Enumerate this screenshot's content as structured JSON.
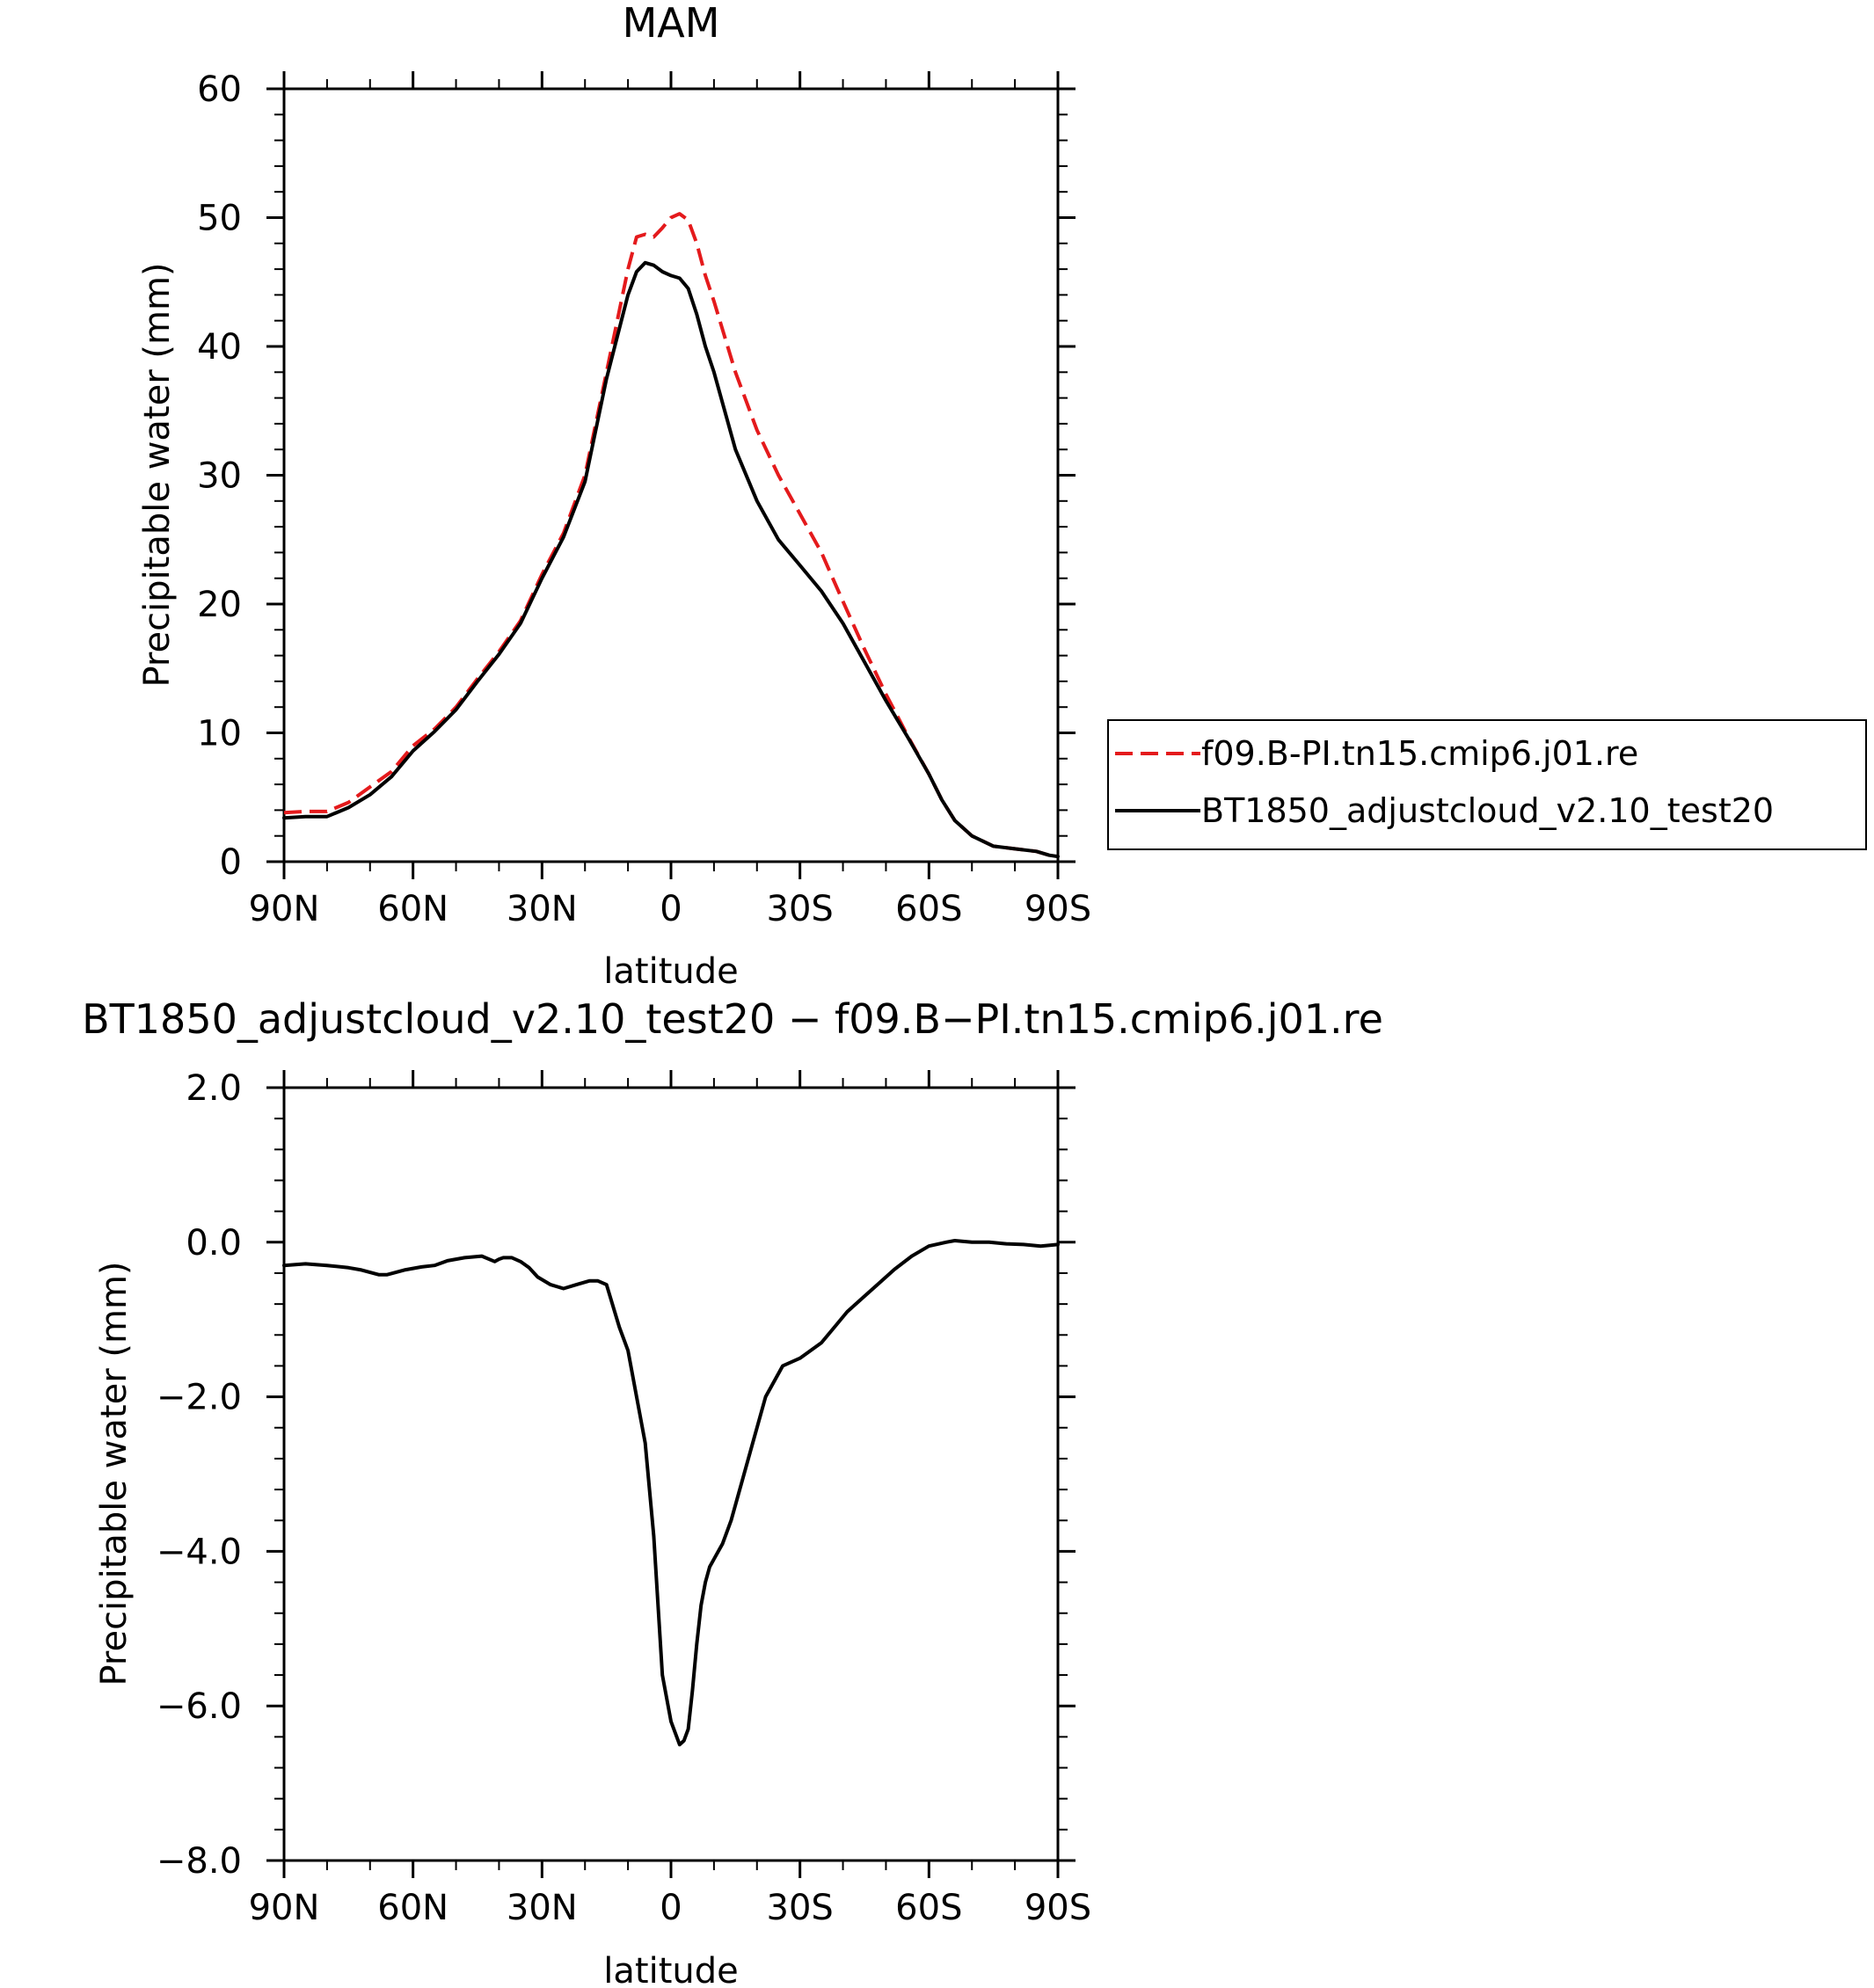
{
  "chart_data": [
    {
      "type": "line",
      "title": "MAM",
      "xlabel": "latitude",
      "ylabel": "Precipitable water (mm)",
      "xlim": [
        90,
        -90
      ],
      "ylim": [
        0,
        60
      ],
      "x_ticks": [
        90,
        60,
        30,
        0,
        -30,
        -60,
        -90
      ],
      "x_tick_labels": [
        "90N",
        "60N",
        "30N",
        "0",
        "30S",
        "60S",
        "90S"
      ],
      "y_ticks": [
        0,
        10,
        20,
        30,
        40,
        50,
        60
      ],
      "y_tick_labels": [
        "0",
        "10",
        "20",
        "30",
        "40",
        "50",
        "60"
      ],
      "grid": false,
      "legend_position": "right, outside plot",
      "series": [
        {
          "name": "f09.B-PI.tn15.cmip6.j01.re",
          "color": "#e41a1c",
          "dash": "dashed",
          "x": [
            90,
            85,
            80,
            75,
            70,
            65,
            60,
            55,
            50,
            45,
            40,
            35,
            30,
            25,
            20,
            15,
            10,
            8,
            6,
            4,
            2,
            0,
            -2,
            -4,
            -6,
            -8,
            -10,
            -15,
            -20,
            -25,
            -30,
            -35,
            -40,
            -45,
            -50,
            -55,
            -60,
            -63,
            -66,
            -70,
            -75,
            -80,
            -85,
            -88,
            -90
          ],
          "y": [
            3.8,
            3.9,
            3.9,
            4.6,
            5.8,
            7.0,
            9.0,
            10.3,
            12.0,
            14.2,
            16.3,
            18.7,
            22.3,
            25.5,
            30.0,
            38.0,
            46.0,
            48.5,
            48.7,
            48.5,
            49.2,
            50.0,
            50.3,
            49.8,
            48.0,
            45.5,
            43.5,
            38.0,
            33.5,
            30.0,
            27.0,
            24.0,
            20.2,
            16.5,
            13.0,
            9.8,
            6.8,
            4.8,
            3.2,
            2.0,
            1.2,
            1.0,
            0.8,
            0.5,
            0.4
          ]
        },
        {
          "name": "BT1850_adjustcloud_v2.10_test20",
          "color": "#000000",
          "dash": "solid",
          "x": [
            90,
            85,
            80,
            75,
            70,
            65,
            60,
            55,
            50,
            45,
            40,
            35,
            30,
            25,
            20,
            15,
            10,
            8,
            6,
            4,
            2,
            0,
            -2,
            -4,
            -6,
            -8,
            -10,
            -15,
            -20,
            -25,
            -30,
            -35,
            -40,
            -45,
            -50,
            -55,
            -60,
            -63,
            -66,
            -70,
            -75,
            -80,
            -85,
            -88,
            -90
          ],
          "y": [
            3.4,
            3.5,
            3.5,
            4.2,
            5.2,
            6.6,
            8.6,
            10.1,
            11.8,
            14.0,
            16.1,
            18.5,
            22.0,
            25.2,
            29.5,
            37.5,
            44.0,
            45.8,
            46.5,
            46.3,
            45.8,
            45.5,
            45.3,
            44.5,
            42.5,
            40.0,
            38.0,
            32.0,
            28.0,
            25.0,
            23.0,
            21.0,
            18.5,
            15.5,
            12.5,
            9.7,
            6.8,
            4.8,
            3.2,
            2.0,
            1.2,
            1.0,
            0.8,
            0.5,
            0.4
          ]
        }
      ]
    },
    {
      "type": "line",
      "title": "BT1850_adjustcloud_v2.10_test20 − f09.B−PI.tn15.cmip6.j01.re",
      "xlabel": "latitude",
      "ylabel": "Precipitable water (mm)",
      "xlim": [
        90,
        -90
      ],
      "ylim": [
        -8,
        2
      ],
      "x_ticks": [
        90,
        60,
        30,
        0,
        -30,
        -60,
        -90
      ],
      "x_tick_labels": [
        "90N",
        "60N",
        "30N",
        "0",
        "30S",
        "60S",
        "90S"
      ],
      "y_ticks": [
        2,
        0,
        -2,
        -4,
        -6,
        -8
      ],
      "y_tick_labels": [
        "2.0",
        "0.0",
        "−2.0",
        "−4.0",
        "−6.0",
        "−8.0"
      ],
      "grid": false,
      "series": [
        {
          "color": "#000000",
          "dash": "solid",
          "x": [
            90,
            85,
            80,
            75,
            72,
            68,
            66,
            62,
            58,
            55,
            52,
            48,
            44,
            41,
            40,
            39,
            37,
            35,
            33,
            31,
            28,
            25,
            22,
            19,
            17,
            15,
            12,
            10,
            8,
            6,
            4,
            2,
            0,
            -2,
            -3,
            -4,
            -5,
            -6,
            -7,
            -8,
            -9,
            -10,
            -11,
            -12,
            -14,
            -16,
            -19,
            -22,
            -26,
            -30,
            -35,
            -38,
            -41,
            -45,
            -48,
            -52,
            -56,
            -60,
            -64,
            -66,
            -68,
            -70,
            -74,
            -78,
            -82,
            -86,
            -90
          ],
          "y": [
            -0.3,
            -0.28,
            -0.3,
            -0.33,
            -0.36,
            -0.42,
            -0.42,
            -0.36,
            -0.32,
            -0.3,
            -0.24,
            -0.2,
            -0.18,
            -0.25,
            -0.22,
            -0.2,
            -0.2,
            -0.25,
            -0.33,
            -0.45,
            -0.55,
            -0.6,
            -0.55,
            -0.5,
            -0.5,
            -0.55,
            -1.1,
            -1.4,
            -2.0,
            -2.6,
            -3.8,
            -5.6,
            -6.2,
            -6.5,
            -6.45,
            -6.3,
            -5.8,
            -5.2,
            -4.7,
            -4.4,
            -4.2,
            -4.1,
            -4.0,
            -3.9,
            -3.6,
            -3.2,
            -2.6,
            -2.0,
            -1.6,
            -1.5,
            -1.3,
            -1.1,
            -0.9,
            -0.7,
            -0.55,
            -0.35,
            -0.18,
            -0.05,
            0.0,
            0.02,
            0.01,
            0.0,
            0.0,
            -0.02,
            -0.03,
            -0.05,
            -0.03
          ]
        }
      ]
    }
  ]
}
